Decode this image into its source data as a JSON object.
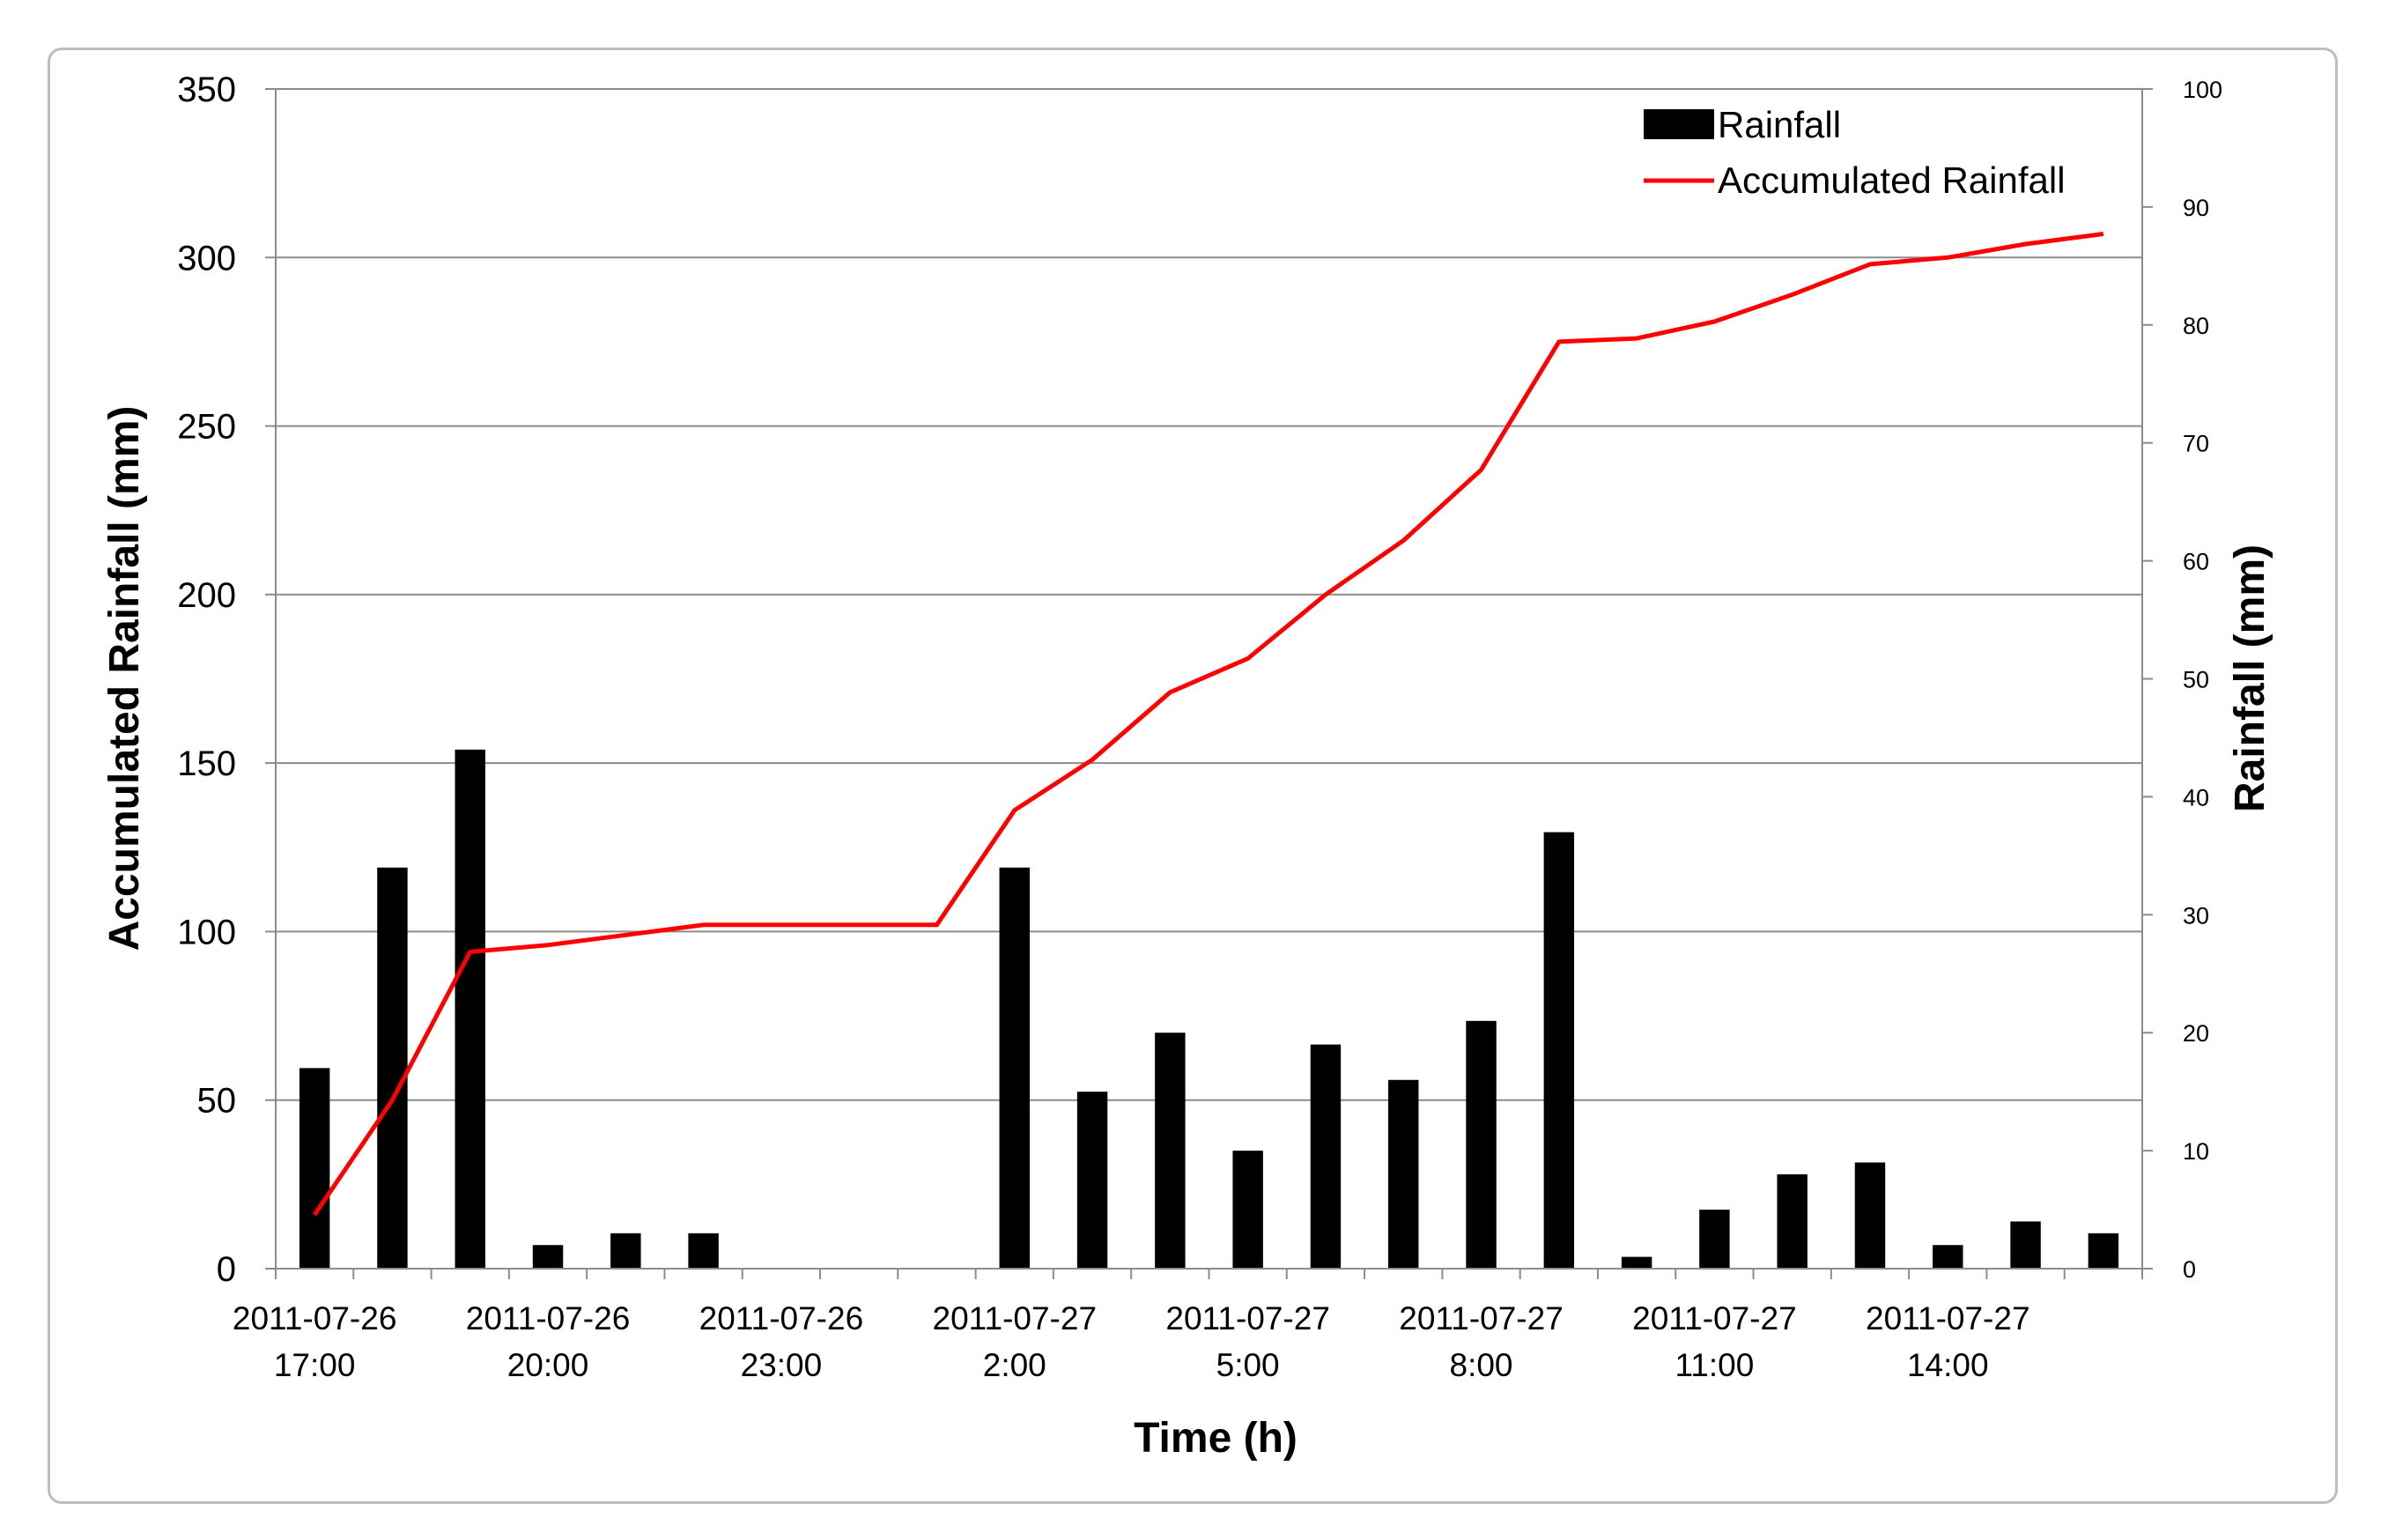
{
  "chart_data": {
    "type": "bar",
    "x_tick_labels": [
      [
        "2011-07-26",
        "17:00"
      ],
      [
        "2011-07-26",
        "20:00"
      ],
      [
        "2011-07-26",
        "23:00"
      ],
      [
        "2011-07-27",
        "2:00"
      ],
      [
        "2011-07-27",
        "5:00"
      ],
      [
        "2011-07-27",
        "8:00"
      ],
      [
        "2011-07-27",
        "11:00"
      ],
      [
        "2011-07-27",
        "14:00"
      ]
    ],
    "xlabel": "Time (h)",
    "ylabel_left": "Accumulated Rainfall (mm)",
    "ylabel_right": "Rainfall (mm)",
    "ylim_left": [
      0,
      350
    ],
    "ylim_right": [
      0,
      100
    ],
    "yticks_left": [
      0,
      50,
      100,
      150,
      200,
      250,
      300,
      350
    ],
    "yticks_right": [
      0,
      10,
      20,
      30,
      40,
      50,
      60,
      70,
      80,
      90,
      100
    ],
    "grid": true,
    "legend_position": "top-right",
    "series": [
      {
        "name": "Rainfall",
        "type": "bar",
        "axis": "right",
        "color": "#000000",
        "values": [
          17,
          34,
          44,
          2,
          3,
          3,
          0,
          0,
          0,
          34,
          15,
          20,
          10,
          19,
          16,
          21,
          37,
          1,
          5,
          8,
          9,
          2,
          4,
          3
        ]
      },
      {
        "name": "Accumulated Rainfall",
        "type": "line",
        "axis": "left",
        "color": "#ff0000",
        "values": [
          16,
          50,
          94,
          96,
          99,
          102,
          102,
          102,
          102,
          136,
          151,
          171,
          181,
          200,
          216,
          237,
          275,
          276,
          281,
          289,
          298,
          300,
          304,
          307
        ]
      }
    ]
  }
}
